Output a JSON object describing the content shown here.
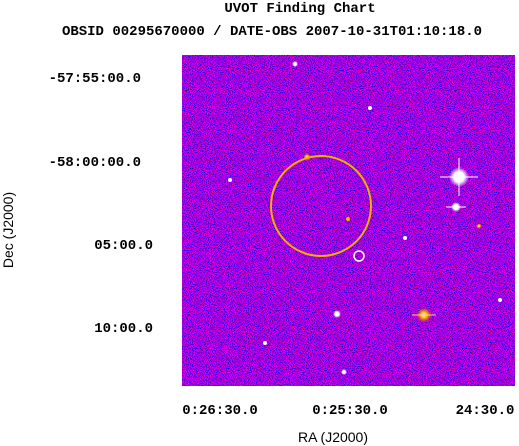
{
  "header": {
    "title": "UVOT Finding Chart",
    "subtitle": "OBSID 00295670000 / DATE-OBS 2007-10-31T01:10:18.0"
  },
  "axes": {
    "x_label": "RA (J2000)",
    "y_label": "Dec (J2000)",
    "x_ticks": [
      "0:26:30.0",
      "0:25:30.0",
      "24:30.0"
    ],
    "y_ticks": [
      "-57:55:00.0",
      "-58:00:00.0",
      "05:00.0",
      "10:00.0"
    ]
  }
}
